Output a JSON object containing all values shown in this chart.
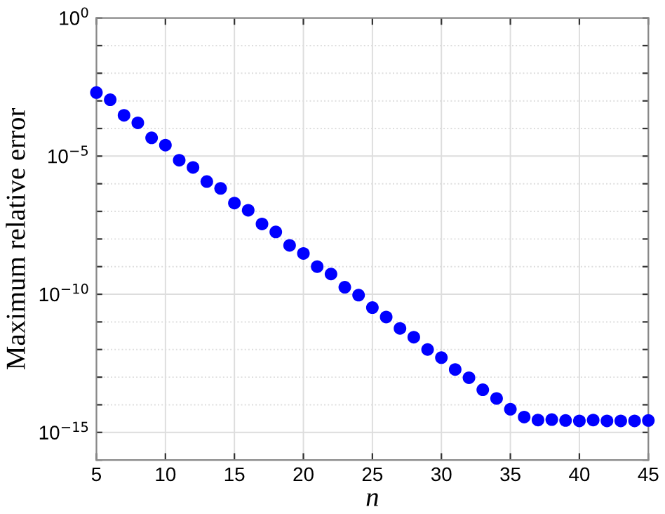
{
  "chart_data": {
    "type": "scatter",
    "xlabel": "n",
    "ylabel": "Maximum relative error",
    "x": [
      5,
      6,
      7,
      8,
      9,
      10,
      11,
      12,
      13,
      14,
      15,
      16,
      17,
      18,
      19,
      20,
      21,
      22,
      23,
      24,
      25,
      26,
      27,
      28,
      29,
      30,
      31,
      32,
      33,
      34,
      35,
      36,
      37,
      38,
      39,
      40,
      41,
      42,
      43,
      44,
      45
    ],
    "series": [
      {
        "color": "#0000ff",
        "values": [
          0.002,
          0.0011,
          0.0003,
          0.00016,
          4.6e-05,
          2.5e-05,
          7.1e-06,
          3.9e-06,
          1.2e-06,
          6.8e-07,
          2e-07,
          1.1e-07,
          3.5e-08,
          1.8e-08,
          5.9e-09,
          3e-09,
          1e-09,
          5.4e-10,
          1.8e-10,
          9.3e-11,
          3.3e-11,
          1.5e-11,
          5.8e-12,
          2.8e-12,
          1e-12,
          5.1e-13,
          1.9e-13,
          9.5e-14,
          3.5e-14,
          1.7e-14,
          6.9e-15,
          3.6e-15,
          2.8e-15,
          2.9e-15,
          2.7e-15,
          2.6e-15,
          2.8e-15,
          2.6e-15,
          2.6e-15,
          2.6e-15,
          2.7e-15
        ]
      }
    ],
    "log": "y",
    "marker": "circle",
    "grid": true,
    "xlim": [
      5,
      45
    ],
    "xticks": [
      5,
      10,
      15,
      20,
      25,
      30,
      35,
      40,
      45
    ],
    "ylim": [
      1e-16,
      1
    ],
    "yticks": [
      {
        "value": 1e-16,
        "label": null
      },
      {
        "value": 1e-15,
        "label": "10$^{−15}$"
      },
      {
        "value": 1e-14,
        "label": null
      },
      {
        "value": 1e-13,
        "label": null
      },
      {
        "value": 1e-12,
        "label": null
      },
      {
        "value": 1e-11,
        "label": null
      },
      {
        "value": 1e-10,
        "label": "10$^{−10}$"
      },
      {
        "value": 1e-09,
        "label": null
      },
      {
        "value": 1e-08,
        "label": null
      },
      {
        "value": 1e-07,
        "label": null
      },
      {
        "value": 1e-06,
        "label": null
      },
      {
        "value": 1e-05,
        "label": "10$^{−5}$"
      },
      {
        "value": 0.0001,
        "label": null
      },
      {
        "value": 0.001,
        "label": null
      },
      {
        "value": 0.01,
        "label": null
      },
      {
        "value": 0.1,
        "label": null
      },
      {
        "value": 1,
        "label": "10$^{0}$"
      }
    ]
  }
}
